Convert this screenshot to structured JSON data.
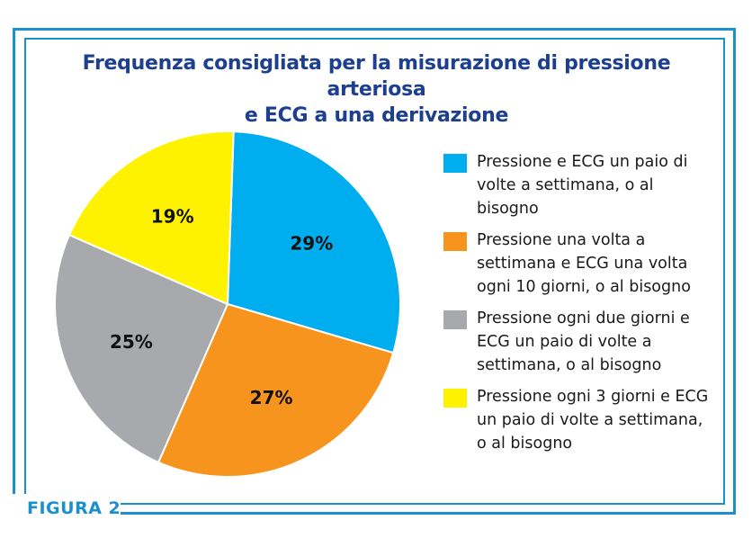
{
  "title": {
    "line1": "Frequenza consigliata per la misurazione di pressione arteriosa",
    "line2": "e ECG a una derivazione"
  },
  "figure_label": "FIGURA 2",
  "colors": {
    "frame": "#1b8fd0",
    "title": "#1d3f8f"
  },
  "chart_data": {
    "type": "pie",
    "title": "Frequenza consigliata per la misurazione di pressione arteriosa e ECG a una derivazione",
    "legend_position": "right",
    "slices": [
      {
        "label": "Pressione e ECG un paio di volte a settimana, o al bisogno",
        "value": 29,
        "value_label": "29%",
        "color": "#00aeef"
      },
      {
        "label": "Pressione una volta a settimana e ECG una volta ogni 10 giorni, o al bisogno",
        "value": 27,
        "value_label": "27%",
        "color": "#f7941d"
      },
      {
        "label": "Pressione ogni due giorni e ECG un paio di volte a settimana, o al bisogno",
        "value": 25,
        "value_label": "25%",
        "color": "#a7a9ac"
      },
      {
        "label": "Pressione ogni 3 giorni e ECG un paio di volte a settimana, o al bisogno",
        "value": 19,
        "value_label": "19%",
        "color": "#fff200"
      }
    ]
  }
}
